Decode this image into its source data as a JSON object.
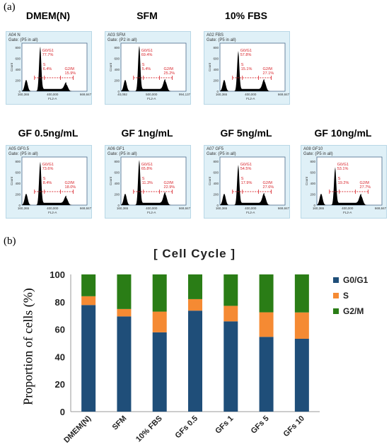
{
  "panel_a_label": "(a)",
  "panel_b_label": "(b)",
  "flow_panels": [
    {
      "title": "DMEM(N)",
      "sample_id": "A04 N",
      "gate": "Gate: (P5 in all)",
      "g0g1": "G0/G1\n77.7%",
      "s": "S\n6.4%",
      "g2m": "G2/M\n15.9%",
      "xticks": [
        "160,365",
        "400,000",
        "669,847"
      ],
      "xaxis": "FL2-A",
      "yaxis": "Count"
    },
    {
      "title": "SFM",
      "sample_id": "A03 SFM",
      "gate": "Gate: (P2 in all)",
      "g0g1": "G0/G1\n69.4%",
      "s": "S\n5.4%",
      "g2m": "G2/M\n25.2%",
      "xticks": [
        "40,092",
        "500,000",
        "994,137"
      ],
      "xaxis": "FL2-A",
      "yaxis": "Count"
    },
    {
      "title": "10% FBS",
      "sample_id": "A02 FBS",
      "gate": "Gate: (P5 in all)",
      "g0g1": "G0/G1\n57.8%",
      "s": "S\n15.1%",
      "g2m": "G2/M\n27.1%",
      "xticks": [
        "160,365",
        "400,000",
        "669,847"
      ],
      "xaxis": "FL2-A",
      "yaxis": "Count"
    },
    {
      "title": "GF 0.5ng/mL",
      "sample_id": "A05 GF0.5",
      "gate": "Gate: (P5 in all)",
      "g0g1": "G0/G1\n73.6%",
      "s": "S\n8.4%",
      "g2m": "G2/M\n18.0%",
      "xticks": [
        "160,365",
        "400,000",
        "669,847"
      ],
      "xaxis": "FL2-A",
      "yaxis": "Count"
    },
    {
      "title": "GF 1ng/mL",
      "sample_id": "A06 GF1",
      "gate": "Gate: (P5 in all)",
      "g0g1": "G0/G1\n65.8%",
      "s": "S\n11.3%",
      "g2m": "G2/M\n22.9%",
      "xticks": [
        "160,365",
        "400,000",
        "669,847"
      ],
      "xaxis": "FL2-A",
      "yaxis": "Count"
    },
    {
      "title": "GF 5ng/mL",
      "sample_id": "A07 GF5",
      "gate": "Gate: (P5 in all)",
      "g0g1": "G0/G1\n54.5%",
      "s": "S\n17.9%",
      "g2m": "G2/M\n27.6%",
      "xticks": [
        "160,365",
        "400,000",
        "669,847"
      ],
      "xaxis": "FL2-A",
      "yaxis": "Count"
    },
    {
      "title": "GF 10ng/mL",
      "sample_id": "A08 GF10",
      "gate": "Gate: (P5 in all)",
      "g0g1": "G0/G1\n53.1%",
      "s": "S\n19.2%",
      "g2m": "G2/M\n27.7%",
      "xticks": [
        "160,365",
        "400,000",
        "669,847"
      ],
      "xaxis": "FL2-A",
      "yaxis": "Count"
    }
  ],
  "chart_data": {
    "type": "bar",
    "stacked": true,
    "title": "[ Cell Cycle ]",
    "ylabel": "Proportion of cells (%)",
    "xlabel": "",
    "ylim": [
      0,
      100
    ],
    "yticks": [
      0,
      20,
      40,
      60,
      80,
      100
    ],
    "grid": false,
    "legend_position": "right",
    "categories": [
      "DMEM(N)",
      "SFM",
      "10% FBS",
      "GFs 0.5",
      "GFs 1",
      "GFs 5",
      "GFs 10"
    ],
    "series": [
      {
        "name": "G0/G1",
        "color": "#1f4e79",
        "values": [
          77.7,
          69.4,
          57.8,
          73.6,
          65.8,
          54.5,
          53.1
        ]
      },
      {
        "name": "S",
        "color": "#f58a33",
        "values": [
          6.4,
          5.4,
          15.1,
          8.4,
          11.3,
          17.9,
          19.2
        ]
      },
      {
        "name": "G2/M",
        "color": "#2a7d16",
        "values": [
          15.9,
          25.2,
          27.1,
          18.0,
          22.9,
          27.6,
          27.7
        ]
      }
    ]
  }
}
